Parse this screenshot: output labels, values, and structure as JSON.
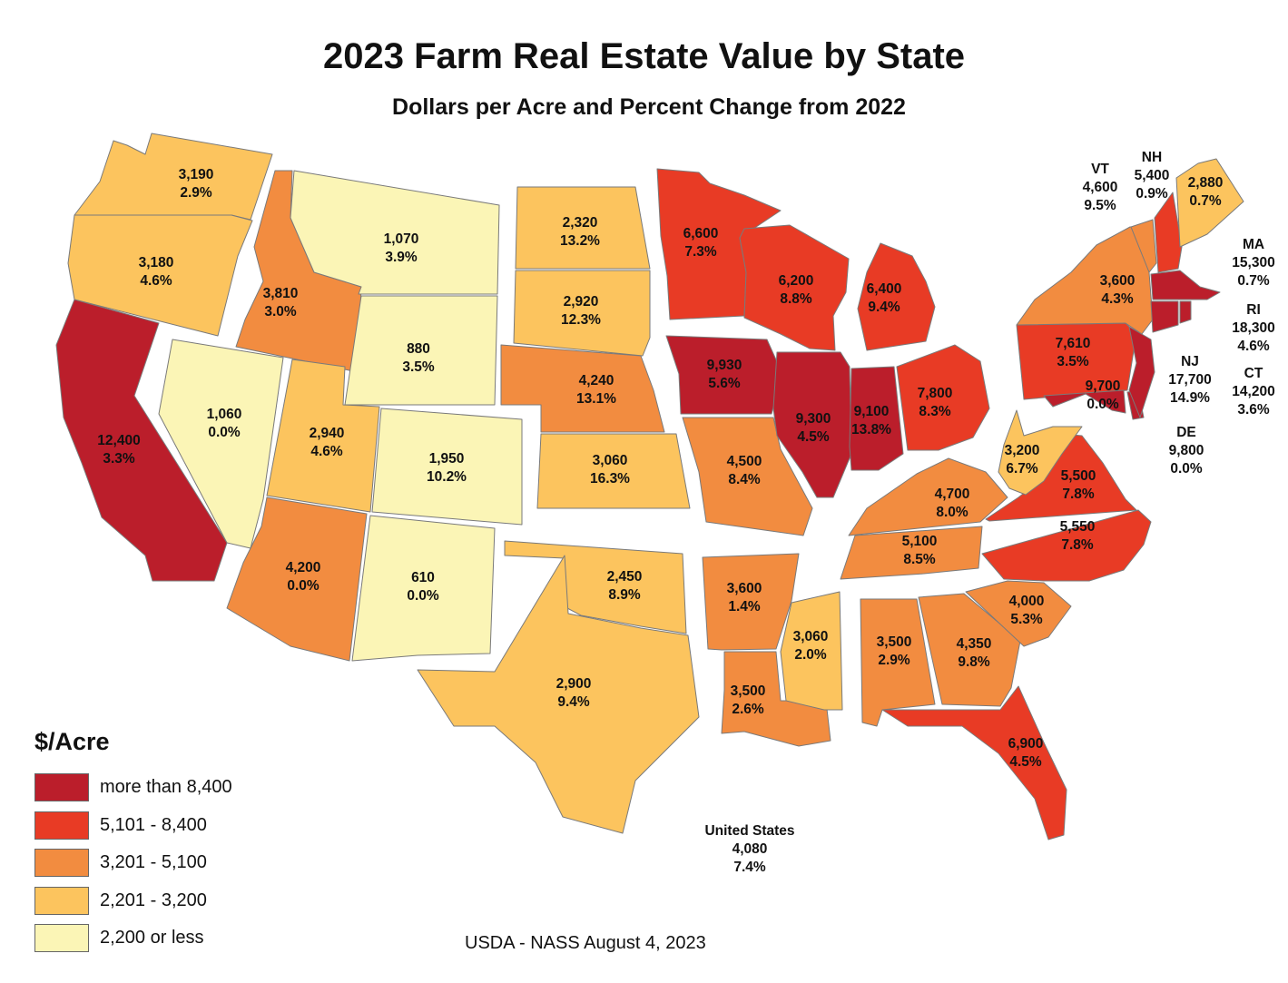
{
  "title": "2023 Farm Real Estate Value by State",
  "subtitle": "Dollars per Acre and Percent Change from 2022",
  "source": "USDA - NASS August 4, 2023",
  "legend": {
    "title": "$/Acre",
    "items": [
      {
        "label": "more than 8,400",
        "color": "#bb1e2b"
      },
      {
        "label": "5,101 - 8,400",
        "color": "#e83b25"
      },
      {
        "label": "3,201 - 5,100",
        "color": "#f28c40"
      },
      {
        "label": "2,201 - 3,200",
        "color": "#fcc45e"
      },
      {
        "label": "2,200 or less",
        "color": "#fbf5b6"
      }
    ]
  },
  "united_states": {
    "name": "United States",
    "value": "4,080",
    "change": "7.4%"
  },
  "states": {
    "WA": {
      "value": "3,190",
      "change": "2.9%"
    },
    "OR": {
      "value": "3,180",
      "change": "4.6%"
    },
    "CA": {
      "value": "12,400",
      "change": "3.3%"
    },
    "ID": {
      "value": "3,810",
      "change": "3.0%"
    },
    "NV": {
      "value": "1,060",
      "change": "0.0%"
    },
    "MT": {
      "value": "1,070",
      "change": "3.9%"
    },
    "WY": {
      "value": "880",
      "change": "3.5%"
    },
    "UT": {
      "value": "2,940",
      "change": "4.6%"
    },
    "CO": {
      "value": "1,950",
      "change": "10.2%"
    },
    "AZ": {
      "value": "4,200",
      "change": "0.0%"
    },
    "NM": {
      "value": "610",
      "change": "0.0%"
    },
    "ND": {
      "value": "2,320",
      "change": "13.2%"
    },
    "SD": {
      "value": "2,920",
      "change": "12.3%"
    },
    "NE": {
      "value": "4,240",
      "change": "13.1%"
    },
    "KS": {
      "value": "3,060",
      "change": "16.3%"
    },
    "OK": {
      "value": "2,450",
      "change": "8.9%"
    },
    "TX": {
      "value": "2,900",
      "change": "9.4%"
    },
    "MN": {
      "value": "6,600",
      "change": "7.3%"
    },
    "IA": {
      "value": "9,930",
      "change": "5.6%"
    },
    "MO": {
      "value": "4,500",
      "change": "8.4%"
    },
    "AR": {
      "value": "3,600",
      "change": "1.4%"
    },
    "LA": {
      "value": "3,500",
      "change": "2.6%"
    },
    "WI": {
      "value": "6,200",
      "change": "8.8%"
    },
    "IL": {
      "value": "9,300",
      "change": "4.5%"
    },
    "MI": {
      "value": "6,400",
      "change": "9.4%"
    },
    "IN": {
      "value": "9,100",
      "change": "13.8%"
    },
    "OH": {
      "value": "7,800",
      "change": "8.3%"
    },
    "KY": {
      "value": "4,700",
      "change": "8.0%"
    },
    "TN": {
      "value": "5,100",
      "change": "8.5%"
    },
    "MS": {
      "value": "3,060",
      "change": "2.0%"
    },
    "AL": {
      "value": "3,500",
      "change": "2.9%"
    },
    "GA": {
      "value": "4,350",
      "change": "9.8%"
    },
    "FL": {
      "value": "6,900",
      "change": "4.5%"
    },
    "SC": {
      "value": "4,000",
      "change": "5.3%"
    },
    "NC": {
      "value": "5,550",
      "change": "7.8%"
    },
    "VA": {
      "value": "5,500",
      "change": "7.8%"
    },
    "WV": {
      "value": "3,200",
      "change": "6.7%"
    },
    "MD": {
      "value": "9,700",
      "change": "0.0%"
    },
    "PA": {
      "value": "7,610",
      "change": "3.5%"
    },
    "NY": {
      "value": "3,600",
      "change": "4.3%"
    },
    "VT": {
      "name": "VT",
      "value": "4,600",
      "change": "9.5%"
    },
    "NH": {
      "name": "NH",
      "value": "5,400",
      "change": "0.9%"
    },
    "ME": {
      "value": "2,880",
      "change": "0.7%"
    },
    "MA": {
      "name": "MA",
      "value": "15,300",
      "change": "0.7%"
    },
    "RI": {
      "name": "RI",
      "value": "18,300",
      "change": "4.6%"
    },
    "CT": {
      "name": "CT",
      "value": "14,200",
      "change": "3.6%"
    },
    "NJ": {
      "name": "NJ",
      "value": "17,700",
      "change": "14.9%"
    },
    "DE": {
      "name": "DE",
      "value": "9,800",
      "change": "0.0%"
    }
  }
}
